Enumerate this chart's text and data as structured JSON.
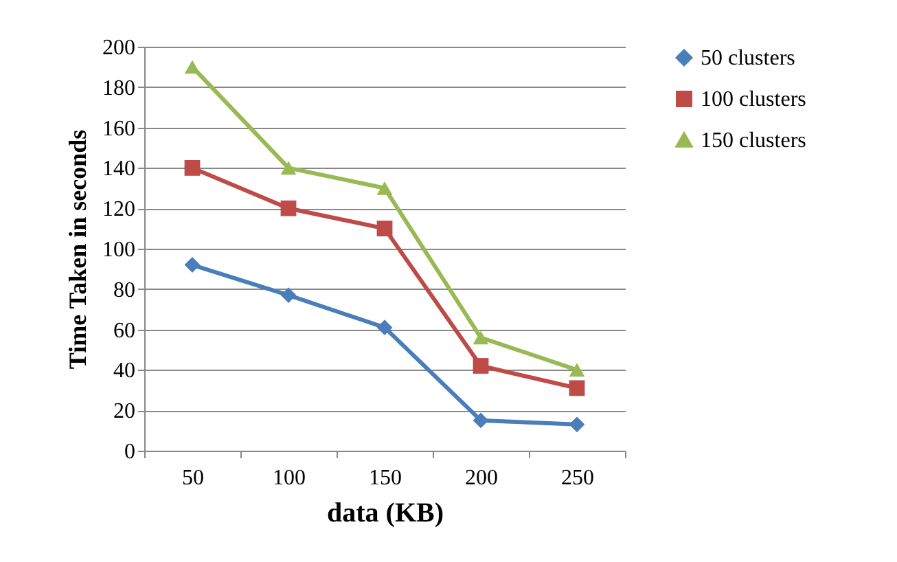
{
  "chart_data": {
    "type": "line",
    "xlabel": "data (KB)",
    "ylabel": "Time Taken in seconds",
    "categories": [
      "50",
      "100",
      "150",
      "200",
      "250"
    ],
    "series": [
      {
        "name": "50 clusters",
        "color": "#4a7ebb",
        "marker": "diamond",
        "values": [
          92,
          77,
          61,
          15,
          13
        ]
      },
      {
        "name": "100 clusters",
        "color": "#be4b48",
        "marker": "square",
        "values": [
          140,
          120,
          110,
          42,
          31
        ]
      },
      {
        "name": "150 clusters",
        "color": "#98b954",
        "marker": "triangle",
        "values": [
          190,
          140,
          130,
          56,
          40
        ]
      }
    ],
    "ylim": [
      0,
      200
    ],
    "yticks": [
      0,
      20,
      40,
      60,
      80,
      100,
      120,
      140,
      160,
      180,
      200
    ],
    "grid": "y",
    "legend": "right"
  }
}
